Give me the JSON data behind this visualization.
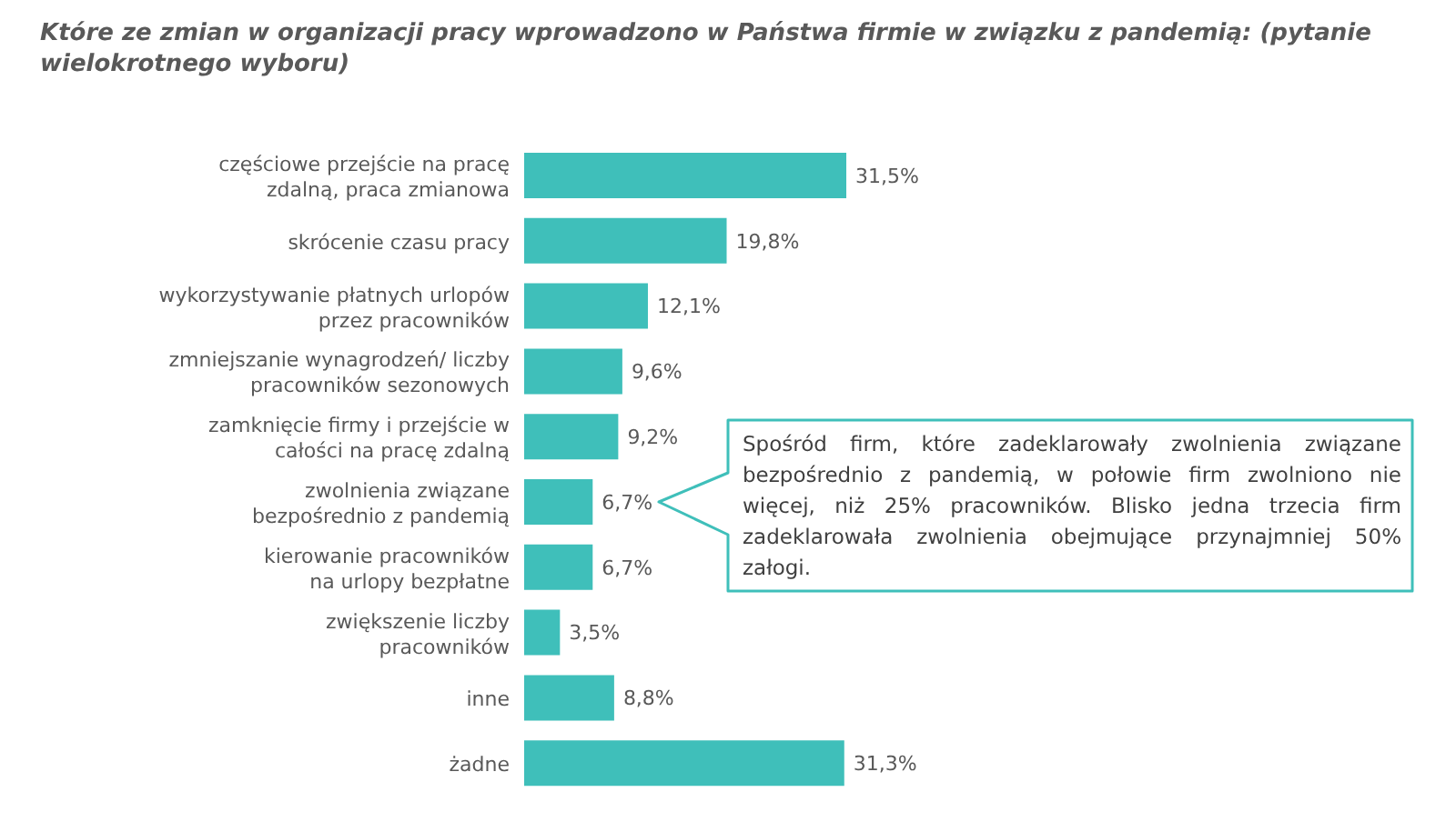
{
  "chart_data": {
    "type": "bar",
    "orientation": "horizontal",
    "title": "Które ze zmian w organizacji pracy wprowadzono w Państwa firmie w związku z pandemią: (pytanie wielokrotnego wyboru)",
    "categories": [
      "częściowe przejście na pracę\nzdalną, praca zmianowa",
      "skrócenie czasu pracy",
      "wykorzystywanie płatnych urlopów\nprzez pracowników",
      "zmniejszanie wynagrodzeń/ liczby\npracowników sezonowych",
      "zamknięcie firmy i przejście w\ncałości na pracę zdalną",
      "zwolnienia związane\nbezpośrednio z pandemią",
      "kierowanie pracowników\nna urlopy bezpłatne",
      "zwiększenie liczby\npracowników",
      "inne",
      "żadne"
    ],
    "values": [
      31.5,
      19.8,
      12.1,
      9.6,
      9.2,
      6.7,
      6.7,
      3.5,
      8.8,
      31.3
    ],
    "value_labels": [
      "31,5%",
      "19,8%",
      "12,1%",
      "9,6%",
      "9,2%",
      "6,7%",
      "6,7%",
      "3,5%",
      "8,8%",
      "31,3%"
    ],
    "color": "#3fbfba",
    "grid": false,
    "legend": false,
    "annotations": [
      "Spośród firm, które zadeklarowały zwolnienia związane bezpośrednio z pandemią, w połowie firm zwolniono nie więcej, niż 25% pracowników. Blisko jedna trzecia firm zadeklarowała zwolnienia obejmujące przynajmniej 50% załogi."
    ]
  }
}
